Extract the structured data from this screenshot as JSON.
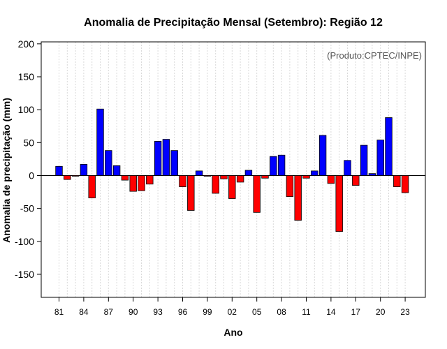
{
  "chart_data": {
    "type": "bar",
    "title": "Anomalia de Precipitação Mensal (Setembro): Região 12",
    "xlabel": "Ano",
    "ylabel": "Anomalia de precipitação (mm)",
    "credit": "(Produto:CPTEC/INPE)",
    "ylim": [
      -185,
      203
    ],
    "yticks": [
      -150,
      -100,
      -50,
      0,
      50,
      100,
      150,
      200
    ],
    "xtick_labels": [
      "81",
      "84",
      "87",
      "90",
      "93",
      "96",
      "99",
      "02",
      "05",
      "08",
      "11",
      "14",
      "17",
      "20",
      "23"
    ],
    "positive_color": "#0000ff",
    "negative_color": "#ff0000",
    "years": [
      1981,
      1982,
      1983,
      1984,
      1985,
      1986,
      1987,
      1988,
      1989,
      1990,
      1991,
      1992,
      1993,
      1994,
      1995,
      1996,
      1997,
      1998,
      1999,
      2000,
      2001,
      2002,
      2003,
      2004,
      2005,
      2006,
      2007,
      2008,
      2009,
      2010,
      2011,
      2012,
      2013,
      2014,
      2015,
      2016,
      2017,
      2018,
      2019,
      2020,
      2021,
      2022,
      2023
    ],
    "values": [
      14,
      -6,
      -1,
      17,
      -34,
      101,
      38,
      15,
      -7,
      -24,
      -23,
      -13,
      52,
      55,
      38,
      -17,
      -53,
      7,
      -1,
      -27,
      -5,
      -35,
      -10,
      8,
      -56,
      -4,
      29,
      31,
      -32,
      -68,
      -4,
      7,
      61,
      -12,
      -85,
      23,
      -15,
      46,
      3,
      54,
      88,
      -17,
      -26
    ]
  }
}
